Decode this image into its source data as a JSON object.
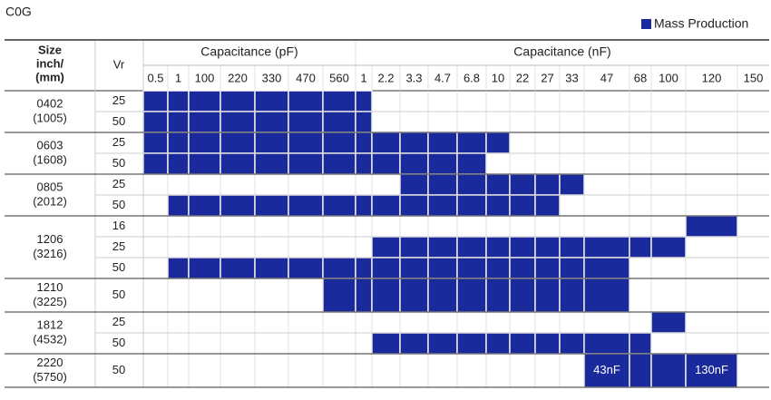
{
  "title": "C0G",
  "legend": "Mass Production",
  "header": {
    "size": [
      "Size",
      "inch/",
      "(mm)"
    ],
    "vr": "Vr",
    "pf": "Capacitance (pF)",
    "nf": "Capacitance (nF)"
  },
  "columns": [
    "0.5",
    "1",
    "100",
    "220",
    "330",
    "470",
    "560",
    "1",
    "2.2",
    "3.3",
    "4.7",
    "6.8",
    "10",
    "22",
    "27",
    "33",
    "47",
    "68",
    "100",
    "120",
    "150"
  ],
  "groups": [
    {
      "size": "0402",
      "mm": "(1005)",
      "rows": [
        {
          "vr": "25",
          "cells": [
            true,
            true,
            true,
            true,
            true,
            true,
            true,
            true,
            false,
            false,
            false,
            false,
            false,
            false,
            false,
            false,
            false,
            false,
            false,
            false,
            false
          ]
        },
        {
          "vr": "50",
          "cells": [
            true,
            true,
            true,
            true,
            true,
            true,
            true,
            true,
            false,
            false,
            false,
            false,
            false,
            false,
            false,
            false,
            false,
            false,
            false,
            false,
            false
          ]
        }
      ]
    },
    {
      "size": "0603",
      "mm": "(1608)",
      "rows": [
        {
          "vr": "25",
          "cells": [
            true,
            true,
            true,
            true,
            true,
            true,
            true,
            true,
            true,
            true,
            true,
            true,
            true,
            false,
            false,
            false,
            false,
            false,
            false,
            false,
            false
          ]
        },
        {
          "vr": "50",
          "cells": [
            true,
            true,
            true,
            true,
            true,
            true,
            true,
            true,
            true,
            true,
            true,
            true,
            false,
            false,
            false,
            false,
            false,
            false,
            false,
            false,
            false
          ]
        }
      ]
    },
    {
      "size": "0805",
      "mm": "(2012)",
      "rows": [
        {
          "vr": "25",
          "cells": [
            false,
            false,
            false,
            false,
            false,
            false,
            false,
            false,
            false,
            true,
            true,
            true,
            true,
            true,
            true,
            true,
            false,
            false,
            false,
            false,
            false
          ]
        },
        {
          "vr": "50",
          "cells": [
            false,
            true,
            true,
            true,
            true,
            true,
            true,
            true,
            true,
            true,
            true,
            true,
            true,
            true,
            true,
            false,
            false,
            false,
            false,
            false,
            false
          ]
        }
      ]
    },
    {
      "size": "1206",
      "mm": "(3216)",
      "rows": [
        {
          "vr": "16",
          "cells": [
            false,
            false,
            false,
            false,
            false,
            false,
            false,
            false,
            false,
            false,
            false,
            false,
            false,
            false,
            false,
            false,
            false,
            false,
            false,
            true,
            false
          ]
        },
        {
          "vr": "25",
          "cells": [
            false,
            false,
            false,
            false,
            false,
            false,
            false,
            false,
            true,
            true,
            true,
            true,
            true,
            true,
            true,
            true,
            true,
            true,
            true,
            false,
            false
          ]
        },
        {
          "vr": "50",
          "cells": [
            false,
            true,
            true,
            true,
            true,
            true,
            true,
            true,
            true,
            true,
            true,
            true,
            true,
            true,
            true,
            true,
            true,
            false,
            false,
            false,
            false
          ]
        }
      ]
    },
    {
      "size": "1210",
      "mm": "(3225)",
      "rows": [
        {
          "vr": "50",
          "cells": [
            false,
            false,
            false,
            false,
            false,
            false,
            true,
            true,
            true,
            true,
            true,
            true,
            true,
            true,
            true,
            true,
            true,
            false,
            false,
            false,
            false
          ]
        }
      ]
    },
    {
      "size": "1812",
      "mm": "(4532)",
      "rows": [
        {
          "vr": "25",
          "cells": [
            false,
            false,
            false,
            false,
            false,
            false,
            false,
            false,
            false,
            false,
            false,
            false,
            false,
            false,
            false,
            false,
            false,
            false,
            true,
            false,
            false
          ]
        },
        {
          "vr": "50",
          "cells": [
            false,
            false,
            false,
            false,
            false,
            false,
            false,
            false,
            true,
            true,
            true,
            true,
            true,
            true,
            true,
            true,
            true,
            true,
            false,
            false,
            false
          ]
        }
      ]
    },
    {
      "size": "2220",
      "mm": "(5750)",
      "rows": [
        {
          "vr": "50",
          "cells": [
            false,
            false,
            false,
            false,
            false,
            false,
            false,
            false,
            false,
            false,
            false,
            false,
            false,
            false,
            false,
            false,
            {
              "text": "43nF"
            },
            true,
            true,
            {
              "text": "130nF"
            },
            false
          ]
        }
      ]
    }
  ]
}
